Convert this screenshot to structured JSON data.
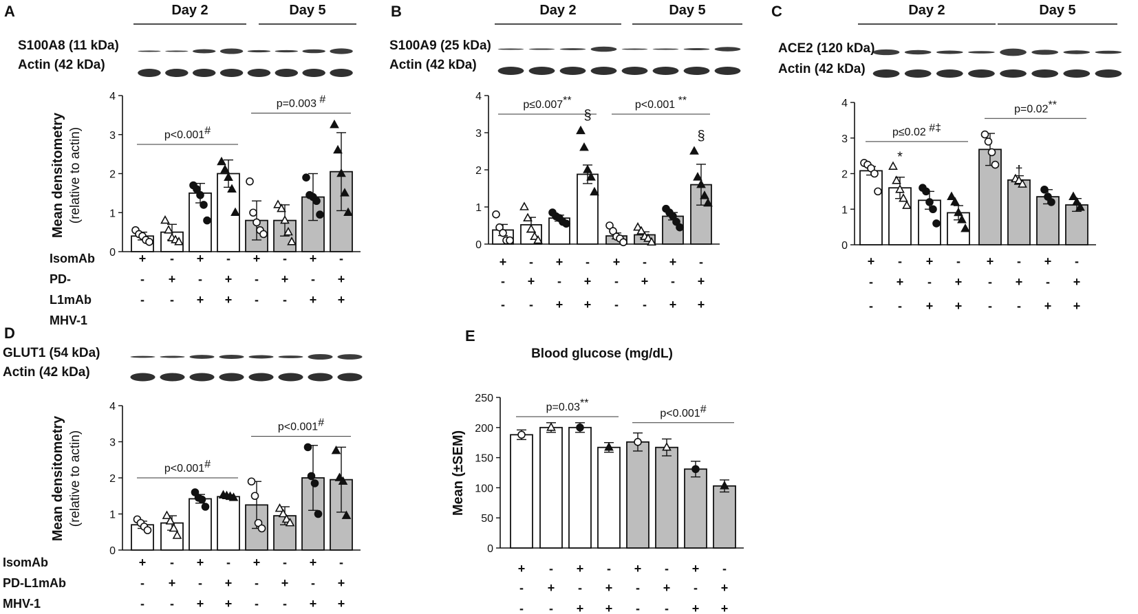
{
  "chart_data": [
    {
      "panel": "A",
      "type": "bar",
      "day_labels": [
        "Day 2",
        "Day 5"
      ],
      "blot_labels": [
        "S100A8 (11 kDa)",
        "Actin (42 kDa)"
      ],
      "ylabel": "Mean densitometry",
      "ylabel2": "(relative to actin)",
      "ylim": [
        0,
        4
      ],
      "yticks": [
        "0",
        "1",
        "2",
        "3",
        "4"
      ],
      "bars": [
        0.4,
        0.5,
        1.5,
        2.0,
        0.8,
        0.8,
        1.4,
        2.05
      ],
      "errors": [
        0.1,
        0.2,
        0.25,
        0.35,
        0.5,
        0.4,
        0.6,
        1.0
      ],
      "points": [
        [
          0.55,
          0.45,
          0.4,
          0.3,
          0.25
        ],
        [
          0.8,
          0.55,
          0.35,
          0.3,
          0.25
        ],
        [
          1.7,
          1.6,
          1.45,
          1.2,
          0.8
        ],
        [
          2.3,
          2.1,
          1.9,
          1.6,
          1.0
        ],
        [
          1.8,
          1.0,
          0.75,
          0.55,
          0.45
        ],
        [
          1.2,
          1.1,
          0.8,
          0.5,
          0.25
        ],
        [
          1.9,
          1.45,
          1.4,
          1.3,
          0.95
        ],
        [
          3.25,
          2.6,
          2.0,
          1.5,
          1.0
        ]
      ],
      "markers": [
        "circle-open",
        "triangle-open",
        "circle",
        "triangle",
        "circle-open",
        "triangle-open",
        "circle",
        "triangle"
      ],
      "colors": [
        "#ffffff",
        "#ffffff",
        "#ffffff",
        "#ffffff",
        "#bdbdbd",
        "#bdbdbd",
        "#bdbdbd",
        "#bdbdbd"
      ],
      "annotations": [
        {
          "groups": [
            0,
            3
          ],
          "text": "p<0.001",
          "sup": "#",
          "y": 2.75
        },
        {
          "groups": [
            4,
            7
          ],
          "text": "p=0.003",
          "sup": " #",
          "y": 3.55
        }
      ],
      "marks": [],
      "treatment_labels": [
        "IsomAb",
        "PD-",
        "L1mAb",
        "MHV-1"
      ],
      "treatment_rows": [
        [
          "+",
          "-",
          "+",
          "-",
          "+",
          "-",
          "+",
          "-"
        ],
        [
          "-",
          "+",
          "-",
          "+",
          "-",
          "+",
          "-",
          "+"
        ],
        [
          "-",
          "-",
          "+",
          "+",
          "-",
          "-",
          "+",
          "+"
        ]
      ]
    },
    {
      "panel": "B",
      "type": "bar",
      "day_labels": [
        "Day 2",
        "Day 5"
      ],
      "blot_labels": [
        "S100A9 (25 kDa)",
        "Actin (42 kDa)"
      ],
      "ylabel": "",
      "ylabel2": "",
      "ylim": [
        0,
        4
      ],
      "yticks": [
        "0",
        "1",
        "2",
        "3",
        "4"
      ],
      "bars": [
        0.38,
        0.52,
        0.7,
        1.88,
        0.22,
        0.25,
        0.75,
        1.6
      ],
      "errors": [
        0.15,
        0.2,
        0.08,
        0.25,
        0.08,
        0.08,
        0.1,
        0.55
      ],
      "points": [
        [
          0.8,
          0.45,
          0.3,
          0.1,
          0.1
        ],
        [
          1.0,
          0.7,
          0.4,
          0.2,
          0.1
        ],
        [
          0.85,
          0.75,
          0.7,
          0.6,
          0.55
        ],
        [
          3.05,
          2.6,
          2.0,
          1.8,
          1.4
        ],
        [
          0.5,
          0.35,
          0.2,
          0.15,
          0.05
        ],
        [
          0.45,
          0.35,
          0.2,
          0.15,
          0.05
        ],
        [
          0.95,
          0.85,
          0.75,
          0.6,
          0.45
        ],
        [
          2.5,
          1.8,
          1.6,
          1.3,
          1.1
        ]
      ],
      "markers": [
        "circle-open",
        "triangle-open",
        "circle",
        "triangle",
        "circle-open",
        "triangle-open",
        "circle",
        "triangle"
      ],
      "colors": [
        "#ffffff",
        "#ffffff",
        "#ffffff",
        "#ffffff",
        "#bdbdbd",
        "#bdbdbd",
        "#bdbdbd",
        "#bdbdbd"
      ],
      "annotations": [
        {
          "groups": [
            0,
            3
          ],
          "text": "p≤0.007",
          "sup": "**",
          "y": 3.5
        },
        {
          "groups": [
            4,
            7
          ],
          "text": "p<0.001",
          "sup": " **",
          "y": 3.5
        }
      ],
      "marks": [
        {
          "group": 3,
          "text": "§",
          "y": 3.35
        },
        {
          "group": 7,
          "text": "§",
          "y": 2.8
        }
      ],
      "treatment_labels": [],
      "treatment_rows": [
        [
          "+",
          "-",
          "+",
          "-",
          "+",
          "-",
          "+",
          "-"
        ],
        [
          "-",
          "+",
          "-",
          "+",
          "-",
          "+",
          "-",
          "+"
        ],
        [
          "-",
          "-",
          "+",
          "+",
          "-",
          "-",
          "+",
          "+"
        ]
      ]
    },
    {
      "panel": "C",
      "type": "bar",
      "day_labels": [
        "Day 2",
        "Day 5"
      ],
      "blot_labels": [
        "ACE2 (120 kDa)",
        "Actin (42 kDa)"
      ],
      "ylabel": "",
      "ylabel2": "",
      "ylim": [
        0,
        4
      ],
      "yticks": [
        "0",
        "1",
        "2",
        "3",
        "4"
      ],
      "bars": [
        2.08,
        1.6,
        1.25,
        0.9,
        2.68,
        1.82,
        1.35,
        1.12
      ],
      "errors": [
        0.12,
        0.3,
        0.25,
        0.2,
        0.45,
        0.12,
        0.2,
        0.18
      ],
      "points": [
        [
          2.3,
          2.25,
          2.15,
          2.0,
          1.5
        ],
        [
          2.2,
          1.8,
          1.55,
          1.3,
          1.1
        ],
        [
          1.6,
          1.5,
          1.2,
          1.0,
          0.6
        ],
        [
          1.35,
          1.2,
          0.9,
          0.7,
          0.45
        ],
        [
          3.1,
          2.9,
          2.6,
          2.25
        ],
        [
          1.85,
          1.8,
          1.7
        ],
        [
          1.55,
          1.35,
          1.2
        ],
        [
          1.35,
          1.2,
          1.05
        ]
      ],
      "markers": [
        "circle-open",
        "triangle-open",
        "circle",
        "triangle",
        "circle-open",
        "triangle-open",
        "circle",
        "triangle"
      ],
      "colors": [
        "#ffffff",
        "#ffffff",
        "#ffffff",
        "#ffffff",
        "#bdbdbd",
        "#bdbdbd",
        "#bdbdbd",
        "#bdbdbd"
      ],
      "annotations": [
        {
          "groups": [
            0,
            3
          ],
          "text": "p≤0.02",
          "sup": " #‡",
          "y": 2.9
        },
        {
          "groups": [
            4,
            7
          ],
          "text": "p=0.02",
          "sup": "**",
          "y": 3.55
        }
      ],
      "marks": [
        {
          "group": 1,
          "text": "*",
          "y": 2.35
        },
        {
          "group": 5,
          "text": "†",
          "y": 1.95
        }
      ],
      "treatment_labels": [],
      "treatment_rows": [
        [
          "+",
          "-",
          "+",
          "-",
          "+",
          "-",
          "+",
          "-"
        ],
        [
          "-",
          "+",
          "-",
          "+",
          "-",
          "+",
          "-",
          "+"
        ],
        [
          "-",
          "-",
          "+",
          "+",
          "-",
          "-",
          "+",
          "+"
        ]
      ]
    },
    {
      "panel": "D",
      "type": "bar",
      "day_labels": [],
      "blot_labels": [
        "GLUT1 (54 kDa)",
        "Actin (42 kDa)"
      ],
      "ylabel": "Mean densitometry",
      "ylabel2": "(relative to actin)",
      "ylim": [
        0,
        4
      ],
      "yticks": [
        "0",
        "1",
        "2",
        "3",
        "4"
      ],
      "bars": [
        0.7,
        0.75,
        1.42,
        1.48,
        1.25,
        0.95,
        2.0,
        1.95
      ],
      "errors": [
        0.1,
        0.2,
        0.12,
        0.05,
        0.65,
        0.25,
        0.9,
        0.9
      ],
      "points": [
        [
          0.85,
          0.75,
          0.65,
          0.55
        ],
        [
          0.95,
          0.8,
          0.6,
          0.4
        ],
        [
          1.6,
          1.45,
          1.4,
          1.2
        ],
        [
          1.52,
          1.5,
          1.48,
          1.45
        ],
        [
          1.9,
          1.5,
          0.75,
          0.6
        ],
        [
          1.15,
          1.0,
          0.85,
          0.75
        ],
        [
          2.85,
          2.05,
          1.85,
          1.0
        ],
        [
          2.75,
          2.0,
          1.9,
          0.95
        ]
      ],
      "markers": [
        "circle-open",
        "triangle-open",
        "circle",
        "triangle",
        "circle-open",
        "triangle-open",
        "circle",
        "triangle"
      ],
      "colors": [
        "#ffffff",
        "#ffffff",
        "#ffffff",
        "#ffffff",
        "#bdbdbd",
        "#bdbdbd",
        "#bdbdbd",
        "#bdbdbd"
      ],
      "annotations": [
        {
          "groups": [
            0,
            3
          ],
          "text": "p<0.001",
          "sup": "#",
          "y": 2.0
        },
        {
          "groups": [
            4,
            7
          ],
          "text": "p<0.001",
          "sup": "#",
          "y": 3.15
        }
      ],
      "marks": [],
      "treatment_labels": [
        "IsomAb",
        "PD-L1mAb",
        "MHV-1"
      ],
      "treatment_rows": [
        [
          "+",
          "-",
          "+",
          "-",
          "+",
          "-",
          "+",
          "-"
        ],
        [
          "-",
          "+",
          "-",
          "+",
          "-",
          "+",
          "-",
          "+"
        ],
        [
          "-",
          "-",
          "+",
          "+",
          "-",
          "-",
          "+",
          "+"
        ]
      ]
    },
    {
      "panel": "E",
      "type": "bar",
      "title": "Blood glucose (mg/dL)",
      "day_labels": [],
      "blot_labels": [],
      "ylabel": "Mean (±SEM)",
      "ylabel2": "",
      "ylim": [
        0,
        250
      ],
      "yticks": [
        "0",
        "50",
        "100",
        "150",
        "200",
        "250"
      ],
      "bars": [
        188,
        200,
        200,
        167,
        176,
        167,
        131,
        103
      ],
      "errors": [
        8,
        8,
        8,
        8,
        15,
        14,
        13,
        10
      ],
      "points": [
        [
          188
        ],
        [
          200
        ],
        [
          200
        ],
        [
          167
        ],
        [
          176
        ],
        [
          167
        ],
        [
          131
        ],
        [
          103
        ]
      ],
      "markers": [
        "circle-open",
        "triangle-open",
        "circle",
        "triangle",
        "circle-open",
        "triangle-open",
        "circle",
        "triangle"
      ],
      "colors": [
        "#ffffff",
        "#ffffff",
        "#ffffff",
        "#ffffff",
        "#bdbdbd",
        "#bdbdbd",
        "#bdbdbd",
        "#bdbdbd"
      ],
      "annotations": [
        {
          "groups": [
            0,
            3
          ],
          "text": "p=0.03",
          "sup": "**",
          "y": 218
        },
        {
          "groups": [
            4,
            7
          ],
          "text": "p<0.001",
          "sup": "#",
          "y": 208
        }
      ],
      "marks": [],
      "treatment_labels": [],
      "treatment_rows": [
        [
          "+",
          "-",
          "+",
          "-",
          "+",
          "-",
          "+",
          "-"
        ],
        [
          "-",
          "+",
          "-",
          "+",
          "-",
          "+",
          "-",
          "+"
        ],
        [
          "-",
          "-",
          "+",
          "+",
          "-",
          "-",
          "+",
          "+"
        ]
      ]
    }
  ]
}
